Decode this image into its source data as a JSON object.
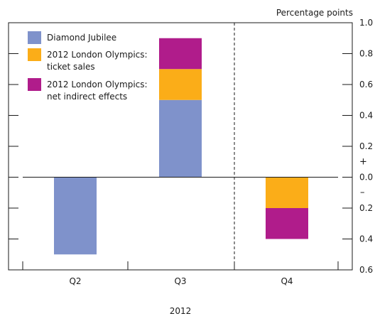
{
  "chart_data": {
    "type": "bar",
    "stacked": true,
    "units": "Percentage points",
    "categories": [
      "Q2",
      "Q3",
      "Q4"
    ],
    "xlabel": "2012",
    "ylim": [
      -0.6,
      1.0
    ],
    "y_ticks": [
      {
        "value": 1.0,
        "label": "1.0"
      },
      {
        "value": 0.8,
        "label": "0.8"
      },
      {
        "value": 0.6,
        "label": "0.6"
      },
      {
        "value": 0.4,
        "label": "0.4"
      },
      {
        "value": 0.2,
        "label": "0.2"
      },
      {
        "value": 0.0,
        "label": "0.0"
      },
      {
        "value": -0.2,
        "label": "0.2"
      },
      {
        "value": -0.4,
        "label": "0.4"
      },
      {
        "value": -0.6,
        "label": "0.6"
      }
    ],
    "sign_labels": {
      "plus": "+",
      "minus": "–"
    },
    "divider_between": [
      "Q3",
      "Q4"
    ],
    "legend_position": "top-left",
    "series": [
      {
        "name": "Diamond Jubilee",
        "color": "#7f92cb",
        "values": [
          -0.5,
          0.5,
          0
        ]
      },
      {
        "name": "2012 London Olympics: ticket sales",
        "legend_lines": [
          "2012 London Olympics:",
          "ticket sales"
        ],
        "color": "#fbad18",
        "values": [
          0,
          0.2,
          -0.2
        ]
      },
      {
        "name": "2012 London Olympics: net indirect effects",
        "legend_lines": [
          "2012 London Olympics:",
          "net indirect effects"
        ],
        "color": "#b01c8b",
        "values": [
          0,
          0.2,
          -0.2
        ]
      }
    ]
  }
}
